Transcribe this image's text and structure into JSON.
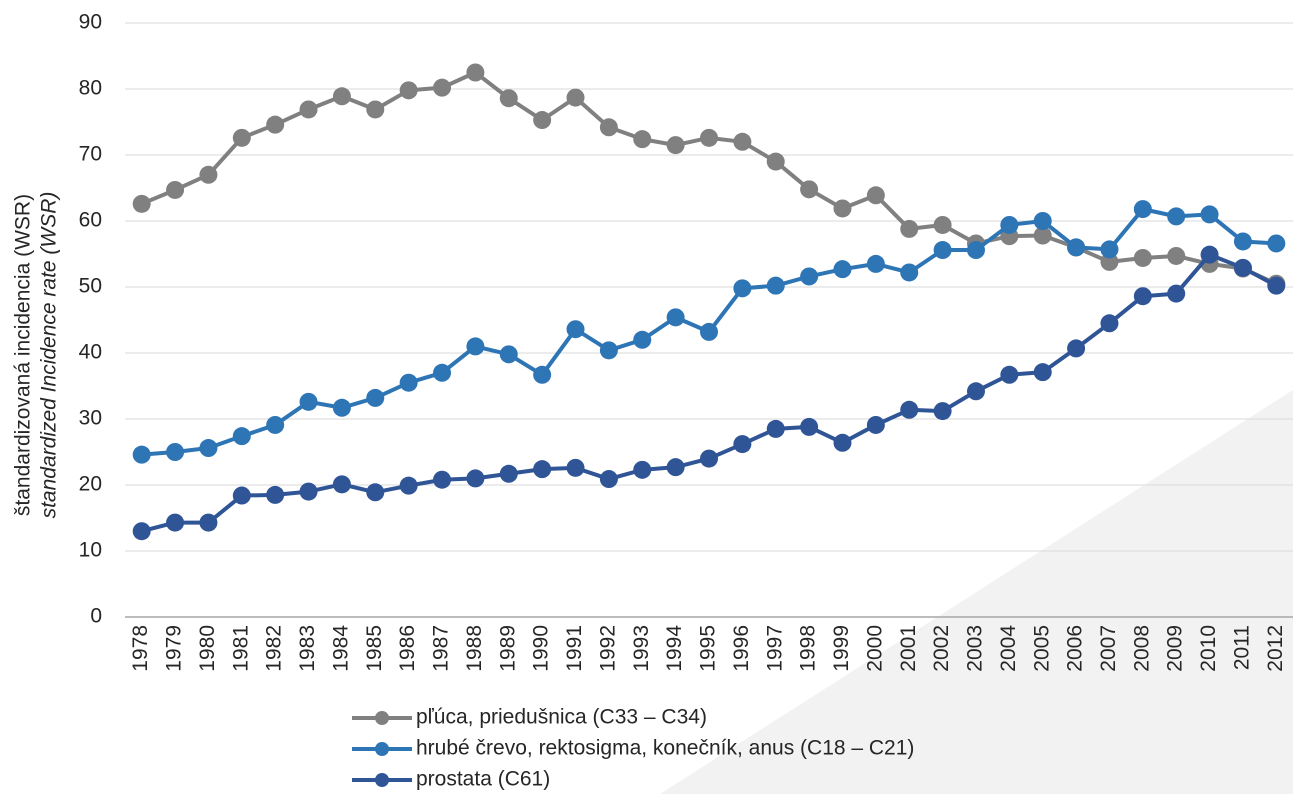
{
  "chart_data": {
    "type": "line",
    "ylabel": [
      "štandardizovaná incidencia (WSR)",
      "standardized Incidence rate (WSR)"
    ],
    "categories": [
      "1978",
      "1979",
      "1980",
      "1981",
      "1982",
      "1983",
      "1984",
      "1985",
      "1986",
      "1987",
      "1988",
      "1989",
      "1990",
      "1991",
      "1992",
      "1993",
      "1994",
      "1995",
      "1996",
      "1997",
      "1998",
      "1999",
      "2000",
      "2001",
      "2002",
      "2003",
      "2004",
      "2005",
      "2006",
      "2007",
      "2008",
      "2009",
      "2010",
      "2011",
      "2012"
    ],
    "series": [
      {
        "name": "pľúca, priedušnica (C33 – C34)",
        "color": "#808080",
        "values": [
          62.6,
          64.7,
          67,
          72.6,
          74.6,
          76.9,
          78.9,
          76.9,
          79.8,
          80.2,
          82.5,
          78.6,
          75.3,
          78.7,
          74.2,
          72.4,
          71.5,
          72.6,
          72,
          69,
          64.8,
          61.9,
          63.9,
          58.8,
          59.4,
          56.6,
          57.7,
          57.8,
          56,
          53.8,
          54.4,
          54.7,
          53.5,
          52.8,
          50.5
        ]
      },
      {
        "name": "hrubé črevo, rektosigma, konečník, anus (C18 – C21)",
        "color": "#2e75b6",
        "values": [
          24.6,
          25,
          25.6,
          27.4,
          29.1,
          32.6,
          31.7,
          33.2,
          35.5,
          37,
          41,
          39.8,
          36.7,
          43.6,
          40.4,
          42,
          45.4,
          43.2,
          49.8,
          50.2,
          51.6,
          52.7,
          53.5,
          52.2,
          55.6,
          55.6,
          59.4,
          60,
          56,
          55.7,
          61.8,
          60.7,
          61,
          56.9,
          56.6
        ]
      },
      {
        "name": "prostata (C61)",
        "color": "#2f5597",
        "values": [
          13,
          14.3,
          14.3,
          18.4,
          18.5,
          19,
          20.1,
          18.9,
          19.9,
          20.8,
          21,
          21.7,
          22.4,
          22.6,
          20.9,
          22.3,
          22.7,
          24,
          26.2,
          28.5,
          28.8,
          26.4,
          29.1,
          31.4,
          31.2,
          34.2,
          36.7,
          37.1,
          40.7,
          44.5,
          48.6,
          49,
          54.9,
          52.9,
          50.2
        ]
      }
    ],
    "ylim": [
      0,
      90
    ],
    "yticks": [
      0,
      10,
      20,
      30,
      40,
      50,
      60,
      70,
      80,
      90
    ],
    "grid": true
  }
}
